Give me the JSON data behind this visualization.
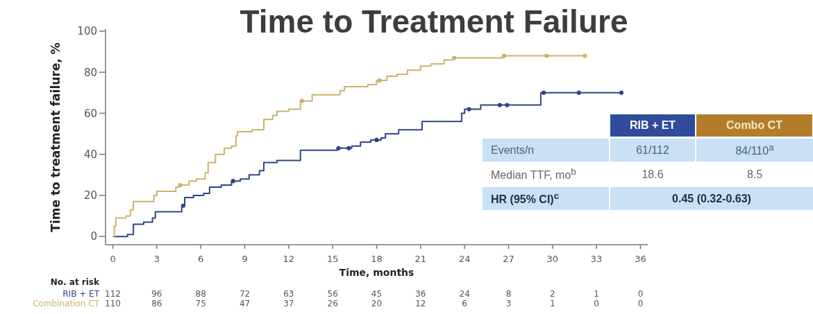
{
  "chart_data": {
    "type": "step",
    "title": "Time to Treatment Failure",
    "xlabel": "Time, months",
    "ylabel": "Time to treatment failure, %",
    "xlim": [
      -0.5,
      36.5
    ],
    "xticks": [
      0,
      3,
      6,
      9,
      12,
      15,
      18,
      21,
      24,
      27,
      30,
      33,
      36
    ],
    "ylim": [
      -4,
      101
    ],
    "yticks": [
      0,
      20,
      40,
      60,
      80,
      100
    ],
    "marker": "none",
    "series": [
      {
        "name": "RIB + ET",
        "color": "#2e4488",
        "x": [
          0,
          1.0,
          1.4,
          2.1,
          2.7,
          2.9,
          4.7,
          4.9,
          5.5,
          6.2,
          6.6,
          7.4,
          8.1,
          8.7,
          9.3,
          10.0,
          10.3,
          11.2,
          12.8,
          15.3,
          16.3,
          16.9,
          17.6,
          18.3,
          18.6,
          19.5,
          21.1,
          23.8,
          24.0,
          25.1,
          29.2,
          34.7
        ],
        "values": [
          0,
          1,
          6,
          7,
          9,
          12,
          15,
          19,
          20,
          21,
          24,
          25,
          27,
          28,
          30,
          32,
          36,
          37,
          42,
          43,
          44,
          46,
          47,
          48,
          50,
          52,
          56,
          60,
          62,
          64,
          70,
          70
        ]
      },
      {
        "name": "Combination CT",
        "color": "#c9b468",
        "x": [
          0,
          0.1,
          0.2,
          0.9,
          1.2,
          1.4,
          2.8,
          3.0,
          4.3,
          4.5,
          5.2,
          5.7,
          6.3,
          6.5,
          7.0,
          7.6,
          8.1,
          8.4,
          8.5,
          9.5,
          10.3,
          10.9,
          11.2,
          12.0,
          12.8,
          13.6,
          15.5,
          15.8,
          17.4,
          18.0,
          18.7,
          19.4,
          20.1,
          21.0,
          21.7,
          22.6,
          23.2,
          26.6,
          32.2
        ],
        "values": [
          0,
          5,
          9,
          10,
          13,
          17,
          20,
          22,
          24,
          25,
          27,
          28,
          31,
          36,
          40,
          43,
          44,
          49,
          51,
          52,
          57,
          59,
          61,
          62,
          66,
          69,
          71,
          73,
          74,
          76,
          78,
          79,
          81,
          83,
          84,
          86,
          87,
          88,
          88
        ]
      },
      {
        "type": "scatter",
        "marker": "circle",
        "color": "#2e4488",
        "x": [
          4.8,
          8.2,
          15.4,
          16.1,
          18.0,
          24.3,
          26.4,
          26.9,
          29.4,
          31.8,
          34.7
        ],
        "values": [
          15,
          27,
          43,
          43,
          47,
          62,
          64,
          64,
          70,
          70,
          70
        ]
      },
      {
        "type": "scatter",
        "marker": "circle",
        "color": "#c9b468",
        "x": [
          4.6,
          12.9,
          18.2,
          23.3,
          26.7,
          29.6,
          32.2
        ],
        "values": [
          25,
          66,
          76,
          87,
          88,
          88,
          88
        ]
      }
    ],
    "annotations": [
      "No. at risk",
      "112",
      "96",
      "88",
      "72",
      "63",
      "56",
      "45",
      "36",
      "24",
      "8",
      "2",
      "1",
      "0",
      "110",
      "86",
      "75",
      "47",
      "37",
      "26",
      "20",
      "12",
      "6",
      "3",
      "1",
      "0",
      "0",
      "RIB + ET",
      "Combo CT",
      "Events/n",
      "61/112",
      "84/110$^{a}$",
      "Median TTF, mo$^{b}$",
      "18.6",
      "8.5",
      "HR (95% CI)$^{c}$",
      "0.45 (0.32-0.63)"
    ]
  }
}
